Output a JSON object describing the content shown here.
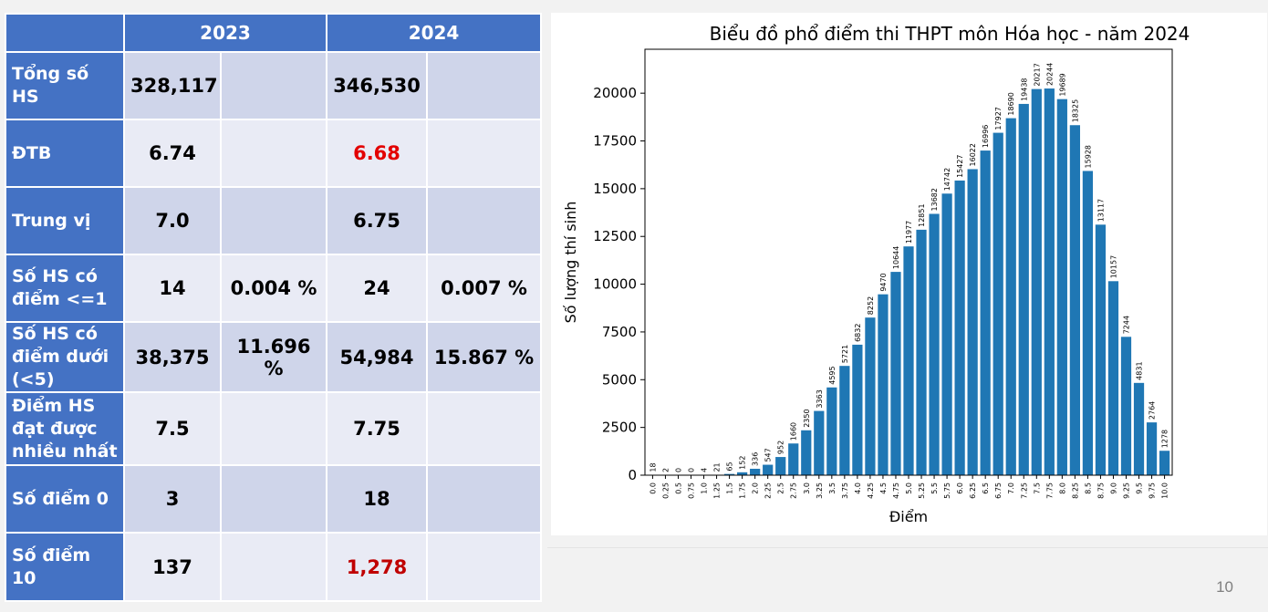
{
  "table": {
    "headers": [
      "",
      "2023",
      "2024"
    ],
    "rows": [
      {
        "label": "Tổng số HS",
        "v2023": "328,117",
        "p2023": "",
        "v2024": "346,530",
        "p2024": ""
      },
      {
        "label": "ĐTB",
        "v2023": "6.74",
        "p2023": "",
        "v2024": "6.68",
        "p2024": ""
      },
      {
        "label": "Trung vị",
        "v2023": "7.0",
        "p2023": "",
        "v2024": "6.75",
        "p2024": ""
      },
      {
        "label": "Số HS có điểm <=1",
        "v2023": "14",
        "p2023": "0.004 %",
        "v2024": "24",
        "p2024": "0.007 %"
      },
      {
        "label": "Số HS có điểm dưới (<5)",
        "v2023": "38,375",
        "p2023": "11.696 %",
        "v2024": "54,984",
        "p2024": "15.867 %"
      },
      {
        "label": "Điểm HS đạt được nhiều nhất",
        "v2023": "7.5",
        "p2023": "",
        "v2024": "7.75",
        "p2024": ""
      },
      {
        "label": "Số điểm 0",
        "v2023": "3",
        "p2023": "",
        "v2024": "18",
        "p2024": ""
      },
      {
        "label": "Số điểm 10",
        "v2023": "137",
        "p2023": "",
        "v2024": "1,278",
        "p2024": ""
      }
    ],
    "colors": {
      "header": "#4472c4",
      "row_odd": "#cfd5ea",
      "row_even": "#e9ebf5",
      "highlight_red": "#e30000",
      "highlight_darkred": "#c00000"
    }
  },
  "chart_data": {
    "type": "bar",
    "title": "Biểu đồ phổ điểm thi THPT môn Hóa học - năm 2024",
    "xlabel": "Điểm",
    "ylabel": "Số lượng thí sinh",
    "categories": [
      "0.0",
      "0.25",
      "0.5",
      "0.75",
      "1.0",
      "1.25",
      "1.5",
      "1.75",
      "2.0",
      "2.25",
      "2.5",
      "2.75",
      "3.0",
      "3.25",
      "3.5",
      "3.75",
      "4.0",
      "4.25",
      "4.5",
      "4.75",
      "5.0",
      "5.25",
      "5.5",
      "5.75",
      "6.0",
      "6.25",
      "6.5",
      "6.75",
      "7.0",
      "7.25",
      "7.5",
      "7.75",
      "8.0",
      "8.25",
      "8.5",
      "8.75",
      "9.0",
      "9.25",
      "9.5",
      "9.75",
      "10.0"
    ],
    "values": [
      18,
      2,
      0,
      0,
      4,
      21,
      65,
      152,
      336,
      547,
      952,
      1660,
      2350,
      3363,
      4595,
      5721,
      6832,
      8252,
      9470,
      10644,
      11977,
      12851,
      13682,
      14742,
      15427,
      16022,
      16996,
      17927,
      18690,
      19438,
      20217,
      20244,
      19689,
      18325,
      15928,
      13117,
      10157,
      7244,
      4831,
      2764,
      1278
    ],
    "yticks": [
      0,
      2500,
      5000,
      7500,
      10000,
      12500,
      15000,
      17500,
      20000
    ],
    "ylim": [
      0,
      22300
    ],
    "bar_color": "#1f77b4",
    "grid": false,
    "legend": "none"
  },
  "page_number": "10"
}
